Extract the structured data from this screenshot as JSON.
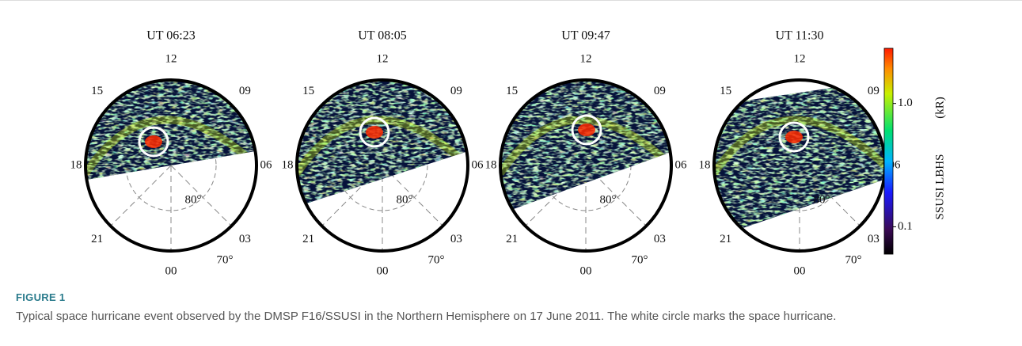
{
  "figure": {
    "panels": [
      {
        "title": "UT  06:23"
      },
      {
        "title": "UT  08:05"
      },
      {
        "title": "UT  09:47"
      },
      {
        "title": "UT  11:30"
      }
    ],
    "dial": {
      "hours": [
        "12",
        "09",
        "06",
        "03",
        "00",
        "21",
        "18",
        "15"
      ],
      "latitudes": [
        "80°",
        "70°"
      ]
    },
    "colorbar": {
      "label": "SSUSI LBHS",
      "unit": "(kR)",
      "log_scale": true,
      "clim": [
        0.06,
        2.8
      ],
      "ticks": [
        {
          "value": 1,
          "label": "1.0"
        },
        {
          "value": 0.1,
          "label": "0.1"
        }
      ]
    }
  },
  "caption": {
    "label": "FIGURE 1",
    "text": "Typical space hurricane event observed by the DMSP F16/SSUSI in the Northern Hemisphere on 17 June 2011. The white circle marks the space hurricane."
  }
}
